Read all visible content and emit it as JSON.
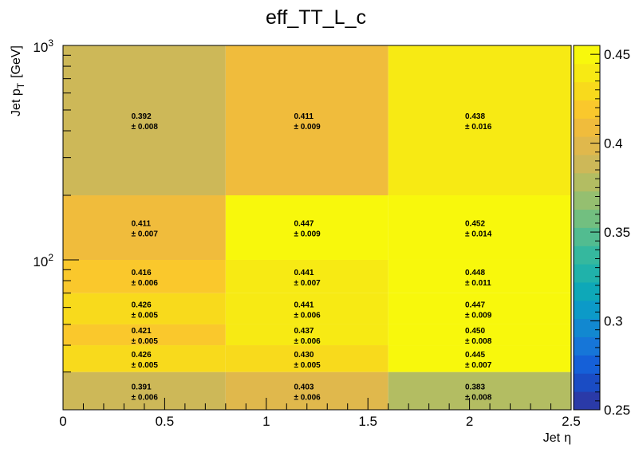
{
  "chart_data": {
    "type": "heatmap",
    "title": "eff_TT_L_c",
    "xlabel": "Jet η",
    "ylabel": "Jet p_T [GeV]",
    "xlabel_main": "Jet",
    "xlabel_sym": "η",
    "ylabel_main": "Jet p",
    "ylabel_sub": "T",
    "ylabel_unit": "[GeV]",
    "x_edges": [
      0,
      0.8,
      1.6,
      2.5
    ],
    "y_edges": [
      20,
      30,
      40,
      50,
      70,
      100,
      200,
      1000
    ],
    "y_scale": "log",
    "xlim": [
      0,
      2.5
    ],
    "ylim": [
      20,
      1000
    ],
    "zlim": [
      0.25,
      0.455
    ],
    "x_tick_labels": [
      "0",
      "0.5",
      "1",
      "1.5",
      "2",
      "2.5"
    ],
    "y_tick_labels": [
      {
        "base": "10",
        "exp": "2"
      },
      {
        "base": "10",
        "exp": "3"
      }
    ],
    "z_tick_labels": [
      "0.25",
      "0.3",
      "0.35",
      "0.4",
      "0.45"
    ],
    "cells": [
      {
        "value": 0.391,
        "error": 0.006,
        "text": "0.391",
        "err_text": "± 0.006"
      },
      {
        "value": 0.403,
        "error": 0.006,
        "text": "0.403",
        "err_text": "± 0.006"
      },
      {
        "value": 0.383,
        "error": 0.008,
        "text": "0.383",
        "err_text": "± 0.008"
      },
      {
        "value": 0.426,
        "error": 0.005,
        "text": "0.426",
        "err_text": "± 0.005"
      },
      {
        "value": 0.43,
        "error": 0.005,
        "text": "0.430",
        "err_text": "± 0.005"
      },
      {
        "value": 0.445,
        "error": 0.007,
        "text": "0.445",
        "err_text": "± 0.007"
      },
      {
        "value": 0.421,
        "error": 0.005,
        "text": "0.421",
        "err_text": "± 0.005"
      },
      {
        "value": 0.437,
        "error": 0.006,
        "text": "0.437",
        "err_text": "± 0.006"
      },
      {
        "value": 0.45,
        "error": 0.008,
        "text": "0.450",
        "err_text": "± 0.008"
      },
      {
        "value": 0.426,
        "error": 0.005,
        "text": "0.426",
        "err_text": "± 0.005"
      },
      {
        "value": 0.441,
        "error": 0.006,
        "text": "0.441",
        "err_text": "± 0.006"
      },
      {
        "value": 0.447,
        "error": 0.009,
        "text": "0.447",
        "err_text": "± 0.009"
      },
      {
        "value": 0.416,
        "error": 0.006,
        "text": "0.416",
        "err_text": "± 0.006"
      },
      {
        "value": 0.441,
        "error": 0.007,
        "text": "0.441",
        "err_text": "± 0.007"
      },
      {
        "value": 0.448,
        "error": 0.011,
        "text": "0.448",
        "err_text": "± 0.011"
      },
      {
        "value": 0.411,
        "error": 0.007,
        "text": "0.411",
        "err_text": "± 0.007"
      },
      {
        "value": 0.447,
        "error": 0.009,
        "text": "0.447",
        "err_text": "± 0.009"
      },
      {
        "value": 0.452,
        "error": 0.014,
        "text": "0.452",
        "err_text": "± 0.014"
      },
      {
        "value": 0.392,
        "error": 0.008,
        "text": "0.392",
        "err_text": "± 0.008"
      },
      {
        "value": 0.411,
        "error": 0.009,
        "text": "0.411",
        "err_text": "± 0.009"
      },
      {
        "value": 0.438,
        "error": 0.016,
        "text": "0.438",
        "err_text": "± 0.016"
      }
    ],
    "palette": [
      "#2a3aa8",
      "#1a4cc4",
      "#1560d8",
      "#1676d8",
      "#1288d0",
      "#0c9ac8",
      "#0ea8b8",
      "#20b2aa",
      "#35b89e",
      "#52bc90",
      "#72bf80",
      "#95bf70",
      "#b3bd62",
      "#cdb858",
      "#e0b84c",
      "#f0bc3c",
      "#fac82c",
      "#f8da1c",
      "#f7ea14",
      "#f8f80c"
    ],
    "grid": false,
    "legend": "colorbar-right"
  }
}
